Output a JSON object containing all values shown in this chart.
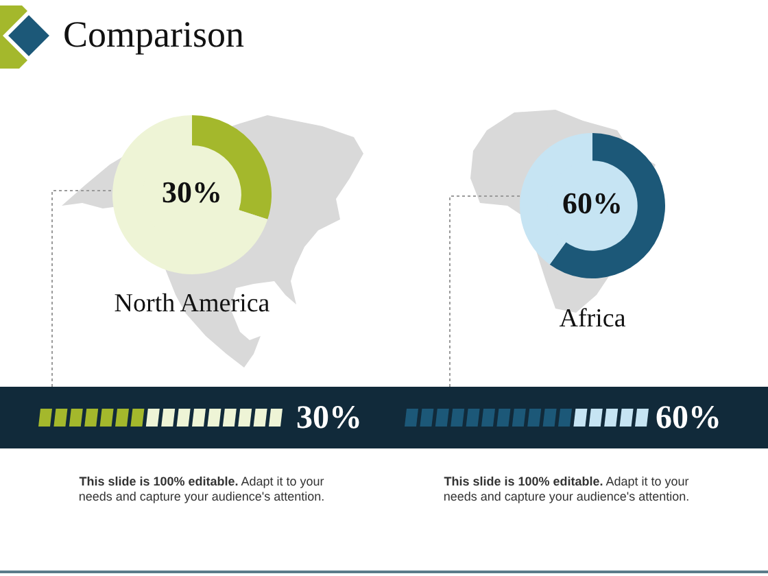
{
  "chart_data": [
    {
      "type": "other",
      "title": "Comparison"
    },
    {
      "type": "donut",
      "title": "North America",
      "categories": [
        null,
        null
      ],
      "values": [
        30,
        70
      ],
      "colors": [
        "#a4b82c",
        "#eef4d6"
      ],
      "value_labels": [
        "30%",
        null
      ],
      "annotations": [
        "30%",
        "This slide is 100% editable.",
        "Adapt it to your needs and capture your audience's attention."
      ]
    },
    {
      "type": "donut",
      "title": "Africa",
      "categories": [
        null,
        null
      ],
      "values": [
        60,
        40
      ],
      "colors": [
        "#1c5878",
        "#c6e4f3"
      ],
      "value_labels": [
        "60%",
        null
      ],
      "annotations": [
        "60%",
        "This slide is 100% editable.",
        "Adapt it to your needs and capture your audience's attention."
      ]
    }
  ]
}
